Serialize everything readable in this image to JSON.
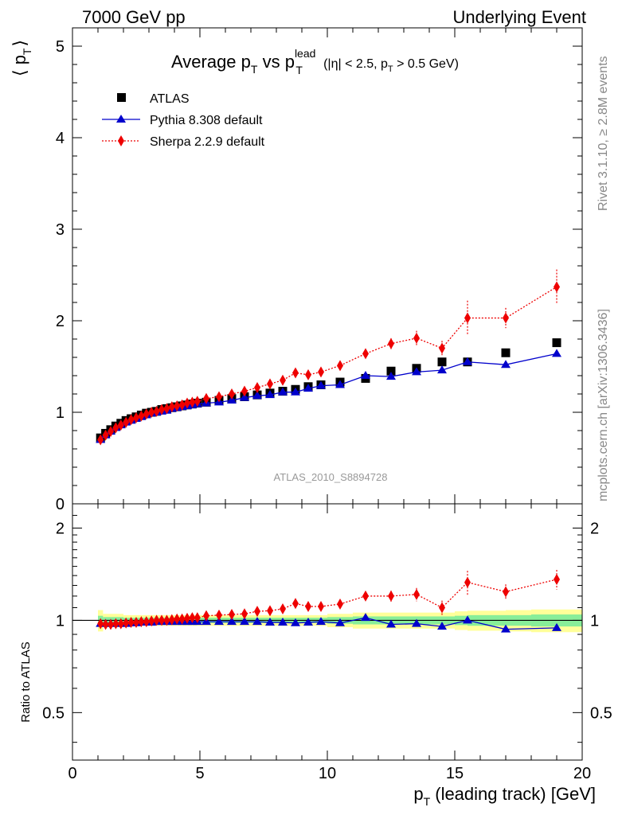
{
  "header": {
    "left": "7000 GeV pp",
    "right": "Underlying Event"
  },
  "side_labels": {
    "rivet": "Rivet 3.1.10, ≥ 2.8M events",
    "mcplots": "mcplots.cern.ch [arXiv:1306.3436]"
  },
  "title": {
    "main": "Average p",
    "main_sub": "T",
    "vs": " vs p",
    "vs_sup": "lead",
    "vs_sub": "T",
    "cut": "(|η| < 2.5, p",
    "cut_sub": "T",
    "cut_end": " > 0.5 GeV)"
  },
  "watermark": "ATLAS_2010_S8894728",
  "axes": {
    "ylabel_open": "⟨ p",
    "ylabel_sub": "T",
    "ylabel_close": "⟩",
    "xlabel_p": "p",
    "xlabel_sub": "T",
    "xlabel_rest": " (leading track) [GeV]",
    "ratio_ylabel": "Ratio to ATLAS"
  },
  "colors": {
    "data": "#000000",
    "pythia": "#0000cc",
    "sherpa": "#ee0000",
    "band_inner": "#88ee99",
    "band_outer": "#ffff99"
  },
  "chart_data": [
    {
      "type": "scatter",
      "panel": "main",
      "xlim": [
        0,
        20
      ],
      "ylim": [
        0,
        5.2
      ],
      "yticks": [
        0,
        1,
        2,
        3,
        4,
        5
      ],
      "xticks": [
        0,
        5,
        10,
        15,
        20
      ],
      "x": [
        1.1,
        1.3,
        1.5,
        1.7,
        1.9,
        2.1,
        2.3,
        2.5,
        2.7,
        2.9,
        3.1,
        3.3,
        3.5,
        3.7,
        3.9,
        4.1,
        4.3,
        4.5,
        4.7,
        4.9,
        5.25,
        5.75,
        6.25,
        6.75,
        7.25,
        7.75,
        8.25,
        8.75,
        9.25,
        9.75,
        10.5,
        11.5,
        12.5,
        13.5,
        14.5,
        15.5,
        17.0,
        19.0
      ],
      "series": [
        {
          "name": "ATLAS",
          "marker": "square",
          "values": [
            0.72,
            0.77,
            0.81,
            0.85,
            0.88,
            0.91,
            0.93,
            0.95,
            0.97,
            0.99,
            1.0,
            1.01,
            1.03,
            1.04,
            1.05,
            1.06,
            1.07,
            1.08,
            1.09,
            1.1,
            1.11,
            1.13,
            1.15,
            1.17,
            1.19,
            1.21,
            1.23,
            1.25,
            1.28,
            1.3,
            1.33,
            1.37,
            1.45,
            1.48,
            1.55,
            1.55,
            1.65,
            1.76
          ]
        },
        {
          "name": "Pythia 8.308 default",
          "marker": "triangle",
          "values": [
            0.7,
            0.75,
            0.79,
            0.83,
            0.86,
            0.89,
            0.91,
            0.93,
            0.95,
            0.97,
            0.99,
            1.0,
            1.01,
            1.02,
            1.04,
            1.05,
            1.06,
            1.07,
            1.08,
            1.09,
            1.1,
            1.11,
            1.13,
            1.16,
            1.18,
            1.19,
            1.22,
            1.22,
            1.26,
            1.29,
            1.3,
            1.4,
            1.39,
            1.44,
            1.46,
            1.55,
            1.52,
            1.64
          ]
        },
        {
          "name": "Sherpa 2.2.9 default",
          "marker": "diamond",
          "values": [
            0.7,
            0.75,
            0.79,
            0.83,
            0.86,
            0.89,
            0.92,
            0.94,
            0.96,
            0.98,
            1.0,
            1.01,
            1.03,
            1.04,
            1.06,
            1.07,
            1.08,
            1.1,
            1.11,
            1.12,
            1.15,
            1.17,
            1.2,
            1.23,
            1.27,
            1.31,
            1.35,
            1.43,
            1.41,
            1.44,
            1.51,
            1.64,
            1.75,
            1.81,
            1.7,
            2.03,
            2.03,
            2.37
          ],
          "errors": [
            0.01,
            0.01,
            0.01,
            0.01,
            0.01,
            0.01,
            0.01,
            0.01,
            0.01,
            0.01,
            0.01,
            0.01,
            0.01,
            0.01,
            0.01,
            0.01,
            0.01,
            0.01,
            0.01,
            0.01,
            0.02,
            0.02,
            0.02,
            0.02,
            0.02,
            0.03,
            0.03,
            0.03,
            0.03,
            0.03,
            0.04,
            0.05,
            0.06,
            0.08,
            0.08,
            0.19,
            0.11,
            0.19
          ]
        }
      ]
    },
    {
      "type": "scatter",
      "panel": "ratio",
      "ylabel": "Ratio to ATLAS",
      "xlim": [
        0,
        20
      ],
      "ylim": [
        0.35,
        2.4
      ],
      "log_y": true,
      "yticks": [
        0.5,
        1,
        2
      ],
      "x": [
        1.1,
        1.3,
        1.5,
        1.7,
        1.9,
        2.1,
        2.3,
        2.5,
        2.7,
        2.9,
        3.1,
        3.3,
        3.5,
        3.7,
        3.9,
        4.1,
        4.3,
        4.5,
        4.7,
        4.9,
        5.25,
        5.75,
        6.25,
        6.75,
        7.25,
        7.75,
        8.25,
        8.75,
        9.25,
        9.75,
        10.5,
        11.5,
        12.5,
        13.5,
        14.5,
        15.5,
        17.0,
        19.0
      ],
      "band": {
        "edges": [
          1.0,
          1.2,
          2.0,
          5.0,
          10.0,
          11.0,
          15.0,
          15.5,
          17.0,
          18.0,
          20.0
        ],
        "inner_halfwidth": [
          0.035,
          0.025,
          0.02,
          0.02,
          0.025,
          0.03,
          0.035,
          0.04,
          0.04,
          0.045
        ],
        "outer_halfwidth": [
          0.08,
          0.05,
          0.04,
          0.04,
          0.05,
          0.06,
          0.07,
          0.075,
          0.08,
          0.085
        ]
      },
      "series": [
        {
          "name": "Pythia 8.308 default",
          "marker": "triangle",
          "values": [
            0.975,
            0.975,
            0.975,
            0.975,
            0.975,
            0.975,
            0.98,
            0.98,
            0.985,
            0.985,
            0.985,
            0.99,
            0.99,
            0.99,
            0.99,
            0.99,
            0.99,
            0.99,
            0.99,
            0.99,
            0.99,
            0.99,
            0.99,
            0.99,
            0.99,
            0.985,
            0.985,
            0.98,
            0.985,
            0.99,
            0.98,
            1.02,
            0.97,
            0.975,
            0.955,
            1.0,
            0.935,
            0.945
          ]
        },
        {
          "name": "Sherpa 2.2.9 default",
          "marker": "diamond",
          "values": [
            0.975,
            0.97,
            0.97,
            0.975,
            0.975,
            0.98,
            0.985,
            0.985,
            0.99,
            0.99,
            0.995,
            1.0,
            1.0,
            1.0,
            1.005,
            1.01,
            1.01,
            1.015,
            1.02,
            1.02,
            1.035,
            1.04,
            1.045,
            1.05,
            1.07,
            1.075,
            1.09,
            1.135,
            1.11,
            1.11,
            1.13,
            1.2,
            1.2,
            1.215,
            1.1,
            1.33,
            1.24,
            1.36
          ],
          "errors": [
            0.01,
            0.01,
            0.01,
            0.01,
            0.01,
            0.01,
            0.01,
            0.01,
            0.01,
            0.01,
            0.01,
            0.01,
            0.01,
            0.01,
            0.01,
            0.01,
            0.01,
            0.01,
            0.01,
            0.01,
            0.015,
            0.015,
            0.015,
            0.02,
            0.02,
            0.02,
            0.025,
            0.025,
            0.025,
            0.03,
            0.03,
            0.04,
            0.05,
            0.06,
            0.06,
            0.12,
            0.07,
            0.1
          ]
        }
      ]
    }
  ]
}
